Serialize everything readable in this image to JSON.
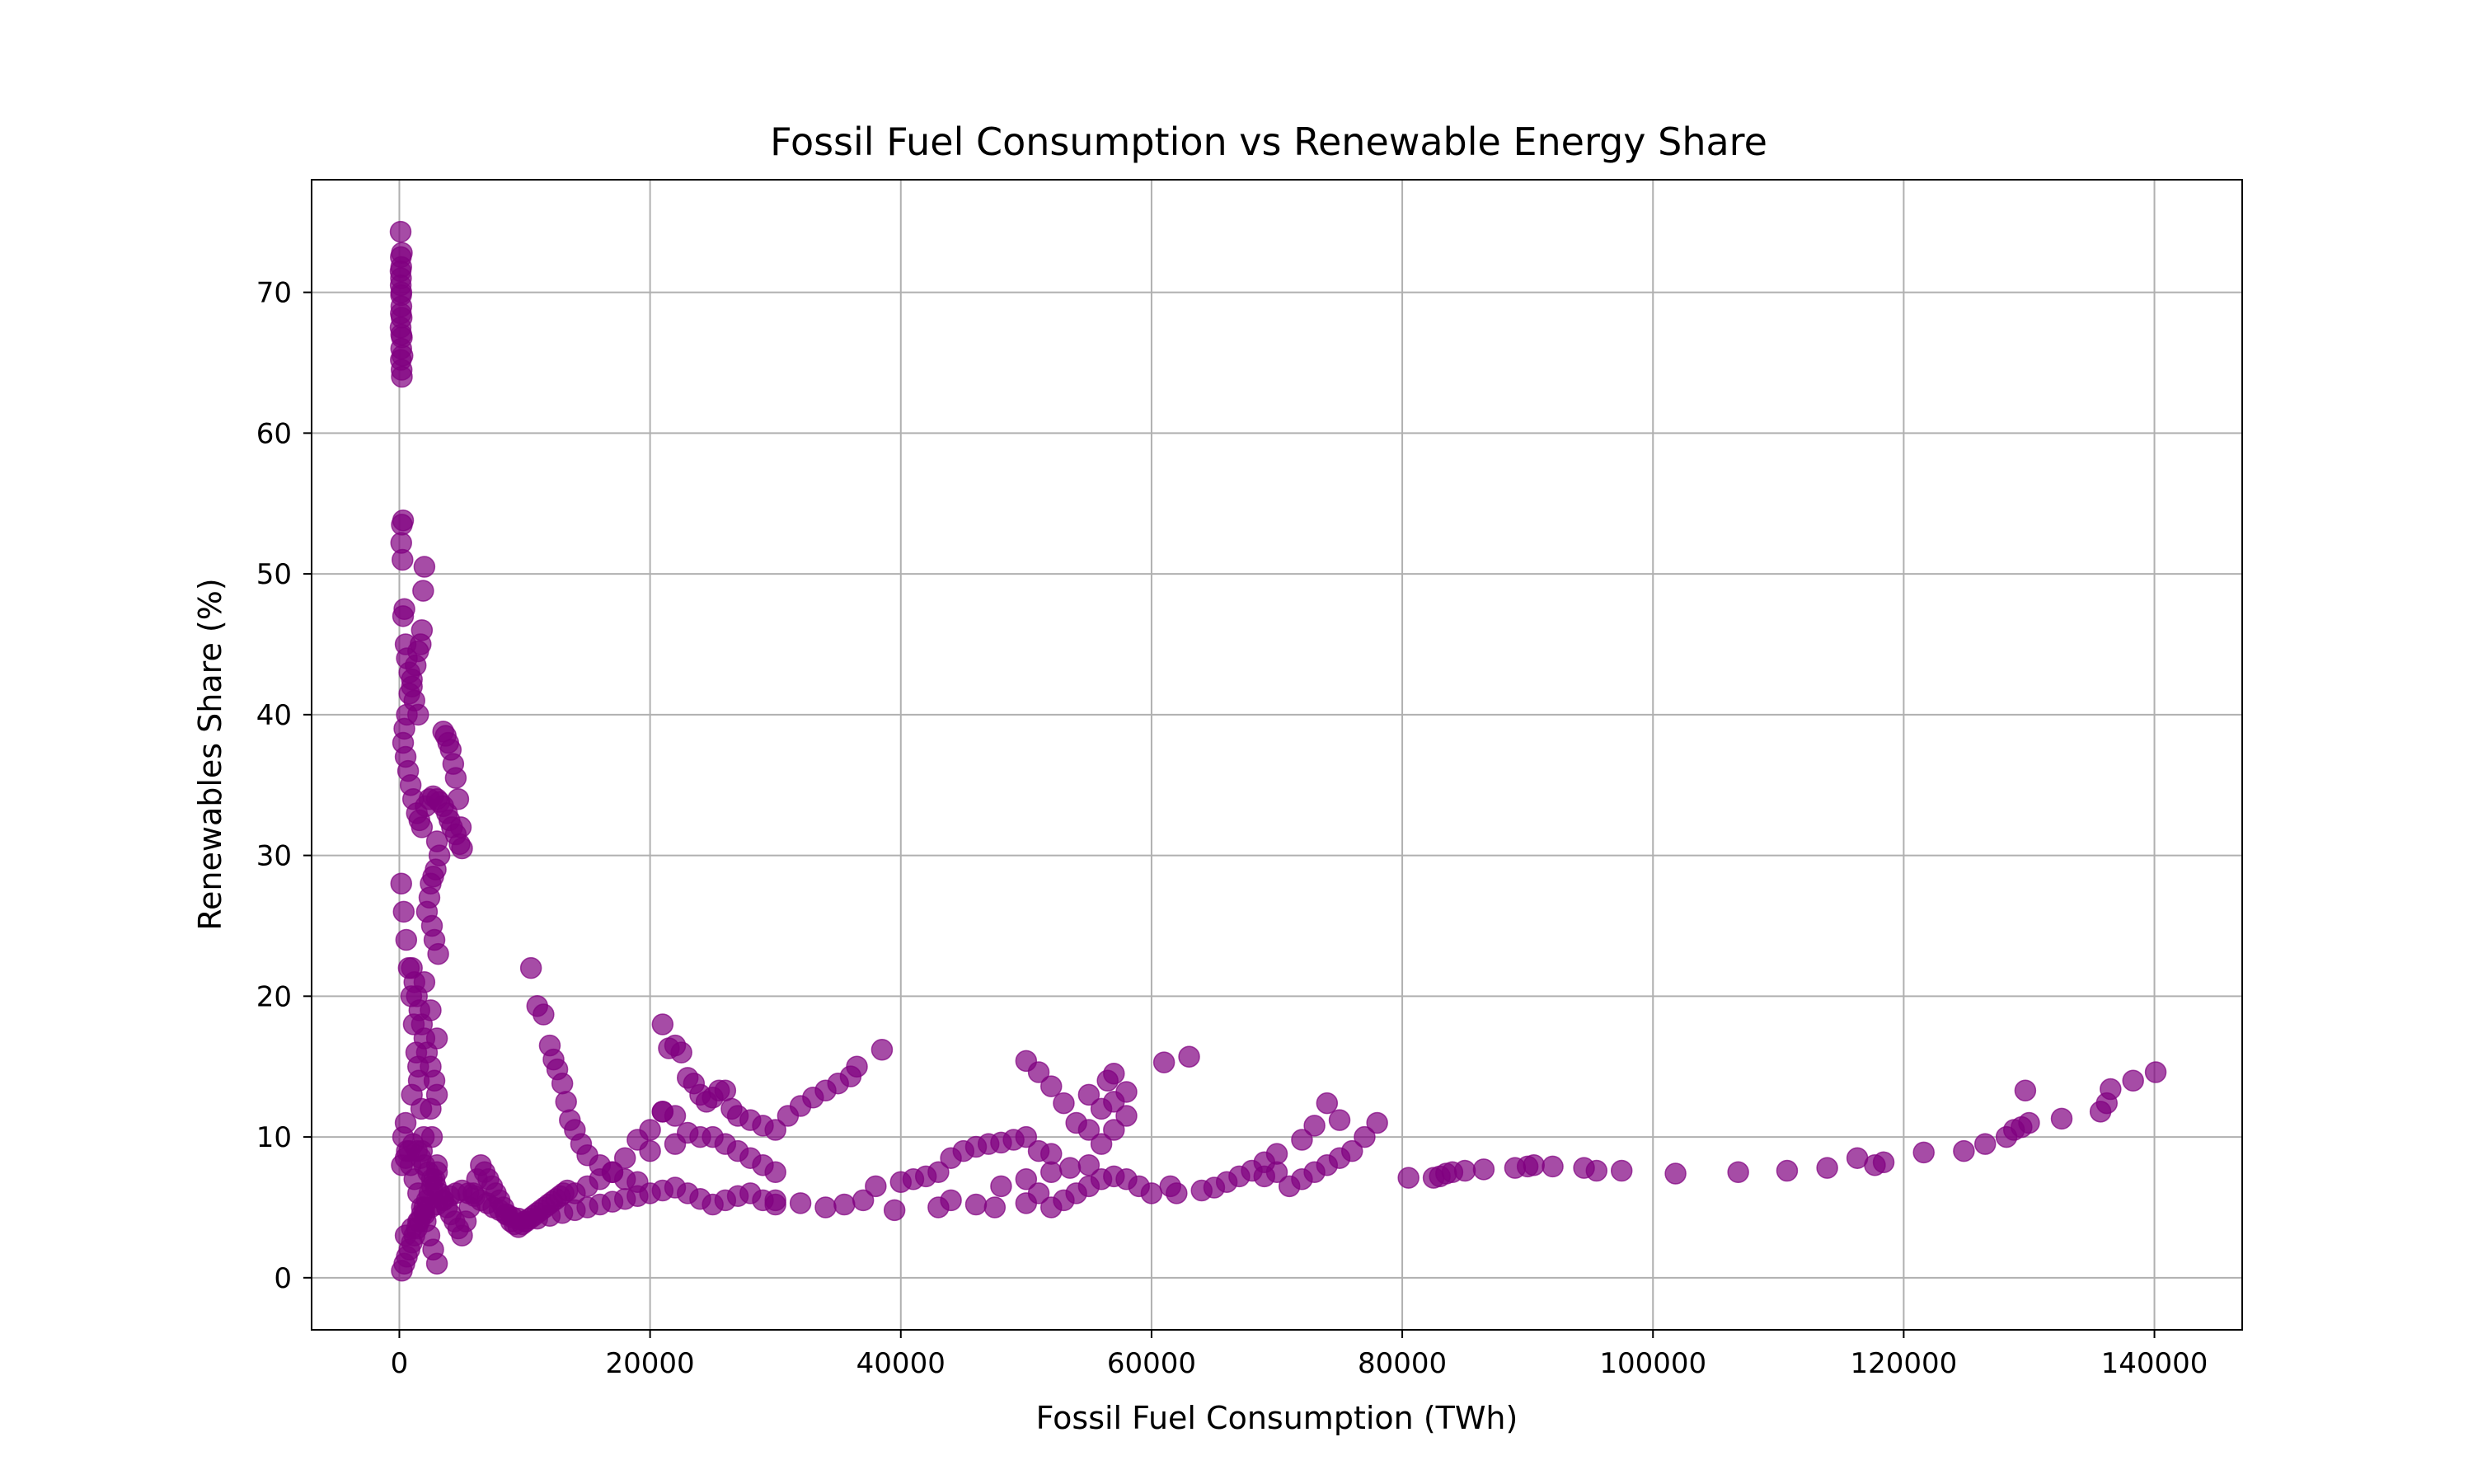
{
  "chart_data": {
    "type": "scatter",
    "title": "Fossil Fuel Consumption vs Renewable Energy Share",
    "xlabel": "Fossil Fuel Consumption (TWh)",
    "ylabel": "Renewables Share (%)",
    "xlim": [
      -7000,
      147000
    ],
    "ylim": [
      -3.7,
      78
    ],
    "xticks": [
      0,
      20000,
      40000,
      60000,
      80000,
      100000,
      120000,
      140000
    ],
    "yticks": [
      0,
      10,
      20,
      30,
      40,
      50,
      60,
      70
    ],
    "grid": true,
    "marker_color": "#800080",
    "marker_alpha": 0.7,
    "series": [
      {
        "x": [
          100,
          120,
          150,
          130,
          110,
          140,
          160,
          180,
          100,
          200,
          150,
          120,
          180,
          200,
          250,
          150,
          120,
          160,
          100,
          200,
          300,
          200,
          150,
          250,
          400,
          300,
          500,
          600,
          800,
          1000,
          1200,
          1500,
          1800,
          2000,
          1900,
          1700,
          1500,
          1300,
          1000,
          800,
          600,
          400,
          300,
          500,
          700,
          900,
          1100,
          1400,
          1600,
          1800,
          2100,
          2400,
          2700,
          3000,
          3200,
          3500,
          3800,
          4000,
          4200,
          4500,
          4800,
          5000,
          3500,
          3700,
          3900,
          4100,
          4300,
          4500,
          4700,
          4900,
          3000,
          3200,
          2900,
          2700,
          2500,
          2400,
          2200,
          2600,
          2800,
          3100,
          1000,
          1200,
          1400,
          1600,
          1800,
          2000,
          2200,
          2500,
          2800,
          3000,
          2000,
          2500,
          3000,
          1500,
          1000,
          500,
          2500,
          2600,
          1800,
          3000,
          10500,
          11000,
          11500,
          12000,
          12300,
          12600,
          13000,
          13300,
          13600,
          14000,
          14500,
          15000,
          16000,
          17000,
          18000,
          19000,
          20000,
          21000,
          22000,
          21000,
          21500,
          22500,
          23000,
          23500,
          24000,
          24500,
          25000,
          25500,
          26000,
          26500,
          27000,
          28000,
          29000,
          30000,
          31000,
          32000,
          33000,
          34000,
          35000,
          36000,
          36500,
          38500,
          25000,
          26000,
          27000,
          28000,
          29000,
          30000,
          20000,
          22000,
          24000,
          23000,
          22000,
          21000,
          19000,
          18000,
          17000,
          16000,
          15000,
          14000,
          30000,
          32000,
          34000,
          35500,
          37000,
          38000,
          39500,
          40000,
          41000,
          42000,
          43000,
          44000,
          45000,
          46000,
          47000,
          48000,
          49000,
          50000,
          51000,
          52000,
          43000,
          44000,
          46000,
          47500,
          50000,
          51000,
          52000,
          53000,
          54000,
          55000,
          56000,
          57000,
          58000,
          59000,
          60000,
          61000,
          63000,
          55000,
          56500,
          57000,
          50000,
          51000,
          52000,
          53000,
          54000,
          55000,
          56000,
          57000,
          58000,
          48000,
          50000,
          52000,
          53500,
          55000,
          56000,
          57000,
          58000,
          61500,
          62000,
          64000,
          65000,
          66000,
          67000,
          68000,
          69000,
          70000,
          71000,
          72000,
          73000,
          74000,
          75000,
          76000,
          77000,
          78000,
          69000,
          70000,
          72000,
          73000,
          74000,
          75000,
          80500,
          82500,
          83000,
          83500,
          84000,
          85000,
          86500,
          89000,
          90000,
          90500,
          92000,
          94500,
          95500,
          97500,
          101800,
          106800,
          110700,
          113900,
          116300,
          117700,
          118400,
          121600,
          124800,
          126500,
          128200,
          128800,
          129400,
          129700,
          130000,
          132600,
          135700,
          136200,
          136500,
          138300,
          140100,
          500,
          1000,
          1500,
          2000,
          2500,
          3000,
          3500,
          4000,
          4500,
          5000,
          5500,
          6000,
          6500,
          7000,
          7500,
          8000,
          8500,
          9000,
          9500,
          10000,
          11000,
          12000,
          13000,
          14000,
          15000,
          16000,
          17000,
          18000,
          19000,
          20000,
          21000,
          22000,
          23000,
          24000,
          25000,
          26000,
          27000,
          28000,
          29000,
          30000,
          200,
          400,
          600,
          800,
          1000,
          1200,
          1400,
          1600,
          1800,
          2000,
          2200,
          2400,
          2600,
          2800,
          3000,
          200,
          500,
          800,
          1100,
          1400,
          1700,
          2000,
          2300,
          2600,
          2900,
          3200,
          3500,
          3800,
          4100,
          4400,
          4700,
          5000,
          5300,
          5600,
          5900,
          6200,
          6500,
          6800,
          7100,
          7400,
          7700,
          8000,
          8300,
          8600,
          8900,
          9200,
          9500,
          9800,
          10100,
          10400,
          10700,
          11000,
          11300,
          11600,
          11900,
          12200,
          12500,
          12800,
          13100,
          13400,
          300,
          600,
          900,
          1200,
          1500,
          1800,
          2100,
          2400,
          2700,
          3000,
          150,
          350,
          550,
          750,
          950,
          1150,
          1350,
          1550,
          1750,
          1950
        ],
        "y": [
          74.3,
          72.5,
          71.8,
          71.0,
          70.5,
          69.8,
          69.0,
          68.2,
          67.5,
          66.8,
          66.0,
          65.2,
          64.5,
          64.0,
          65.5,
          67.0,
          68.5,
          70.0,
          71.5,
          72.8,
          53.8,
          53.5,
          52.2,
          51.0,
          47.5,
          47.0,
          45.0,
          44.0,
          43.0,
          42.0,
          41.0,
          40.0,
          46.0,
          50.5,
          48.8,
          45.0,
          44.5,
          43.5,
          42.5,
          41.5,
          40.0,
          39.0,
          38.0,
          37.0,
          36.0,
          35.0,
          34.0,
          33.0,
          32.5,
          32.0,
          33.5,
          34.0,
          34.2,
          34.0,
          33.8,
          33.5,
          33.0,
          32.5,
          32.0,
          31.5,
          30.8,
          30.5,
          38.8,
          38.5,
          38.0,
          37.5,
          36.5,
          35.5,
          34.0,
          32.0,
          31.0,
          30.0,
          29.0,
          28.5,
          28.0,
          27.0,
          26.0,
          25.0,
          24.0,
          23.0,
          22.0,
          21.0,
          20.0,
          19.0,
          18.0,
          17.0,
          16.0,
          15.0,
          14.0,
          13.0,
          21.0,
          19.0,
          17.0,
          15.0,
          13.0,
          11.0,
          12.0,
          10.0,
          9.0,
          8.0,
          22.0,
          19.3,
          18.7,
          16.5,
          15.5,
          14.8,
          13.8,
          12.5,
          11.2,
          10.5,
          9.5,
          8.7,
          8.0,
          7.5,
          7.0,
          6.8,
          10.5,
          11.8,
          16.5,
          18.0,
          16.3,
          16.0,
          14.2,
          13.8,
          13.0,
          12.5,
          12.8,
          13.3,
          13.3,
          12.0,
          11.5,
          11.2,
          10.8,
          10.5,
          11.5,
          12.2,
          12.8,
          13.3,
          13.8,
          14.3,
          15.0,
          16.2,
          10.0,
          9.5,
          9.0,
          8.5,
          8.0,
          7.5,
          9.0,
          9.5,
          10.0,
          10.3,
          11.5,
          11.8,
          9.8,
          8.5,
          7.5,
          7.0,
          6.5,
          6.0,
          5.5,
          5.3,
          5.0,
          5.2,
          5.5,
          6.5,
          4.8,
          6.8,
          7.0,
          7.2,
          7.5,
          8.5,
          9.0,
          9.3,
          9.5,
          9.6,
          9.8,
          10.0,
          9.0,
          8.8,
          5.0,
          5.5,
          5.2,
          5.0,
          5.3,
          6.0,
          5.0,
          5.5,
          6.0,
          6.5,
          7.0,
          7.2,
          7.0,
          6.5,
          6.0,
          15.3,
          15.7,
          13.0,
          14.0,
          14.5,
          15.4,
          14.6,
          13.6,
          12.4,
          11.0,
          10.5,
          12.0,
          12.5,
          13.2,
          6.5,
          7.0,
          7.5,
          7.8,
          8.0,
          9.5,
          10.5,
          11.5,
          6.5,
          6.0,
          6.2,
          6.4,
          6.8,
          7.2,
          7.6,
          8.2,
          7.5,
          6.5,
          7.0,
          7.5,
          8.0,
          8.5,
          9.0,
          10.0,
          11.0,
          7.2,
          8.8,
          9.8,
          10.8,
          12.4,
          11.2,
          7.1,
          7.1,
          7.2,
          7.4,
          7.5,
          7.6,
          7.7,
          7.8,
          7.9,
          8.0,
          7.9,
          7.8,
          7.6,
          7.6,
          7.4,
          7.5,
          7.6,
          7.8,
          8.5,
          8.0,
          8.2,
          8.9,
          9.0,
          9.5,
          10.0,
          10.5,
          10.7,
          13.3,
          11.0,
          11.3,
          11.8,
          12.4,
          13.4,
          14.0,
          14.6,
          3.0,
          3.5,
          4.0,
          4.5,
          5.0,
          5.2,
          5.5,
          5.8,
          6.0,
          6.2,
          6.0,
          5.8,
          5.5,
          5.3,
          5.0,
          4.8,
          4.5,
          4.3,
          4.2,
          4.0,
          4.2,
          4.4,
          4.6,
          4.8,
          5.0,
          5.2,
          5.4,
          5.6,
          5.8,
          6.0,
          6.2,
          6.4,
          6.0,
          5.6,
          5.2,
          5.5,
          5.8,
          6.0,
          5.5,
          5.2,
          0.5,
          1.0,
          1.5,
          2.0,
          2.5,
          3.0,
          3.5,
          4.0,
          4.5,
          5.0,
          5.5,
          6.0,
          6.5,
          7.0,
          7.5,
          8.0,
          8.5,
          9.0,
          9.5,
          9.0,
          8.5,
          8.0,
          7.5,
          7.0,
          6.5,
          6.0,
          5.5,
          5.0,
          4.5,
          4.0,
          3.5,
          3.0,
          4.0,
          5.0,
          6.0,
          7.0,
          8.0,
          7.5,
          7.0,
          6.5,
          6.0,
          5.5,
          5.0,
          4.5,
          4.0,
          3.8,
          3.6,
          3.8,
          4.0,
          4.2,
          4.4,
          4.6,
          4.8,
          5.0,
          5.2,
          5.4,
          5.6,
          5.8,
          6.0,
          6.2,
          10.0,
          9.0,
          8.0,
          7.0,
          6.0,
          5.0,
          4.0,
          3.0,
          2.0,
          1.0,
          28.0,
          26.0,
          24.0,
          22.0,
          20.0,
          18.0,
          16.0,
          14.0,
          12.0,
          10.0
        ]
      }
    ]
  }
}
